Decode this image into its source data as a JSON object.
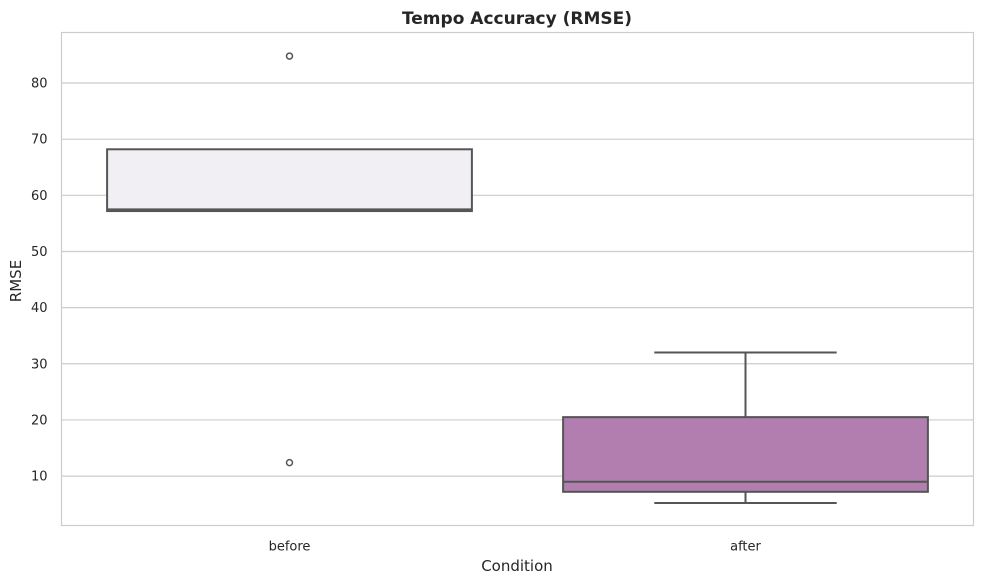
{
  "chart_data": {
    "type": "box",
    "title": "Tempo Accuracy (RMSE)",
    "xlabel": "Condition",
    "ylabel": "RMSE",
    "ylim": [
      1.2,
      89
    ],
    "yticks": [
      10,
      20,
      30,
      40,
      50,
      60,
      70,
      80
    ],
    "grid": "horizontal",
    "categories": [
      "before",
      "after"
    ],
    "boxes": [
      {
        "category": "before",
        "whisker_low": 57.2,
        "q1": 57.2,
        "median": 57.5,
        "q3": 68.2,
        "whisker_high": 68.2,
        "outliers": [
          84.8,
          12.4
        ],
        "color": "#f1eff3"
      },
      {
        "category": "after",
        "whisker_low": 5.2,
        "q1": 7.2,
        "median": 9.0,
        "q3": 20.5,
        "whisker_high": 32.0,
        "outliers": [],
        "color": "#b27eb0"
      }
    ],
    "colors": {
      "line": "#555555",
      "grid": "#cccccc",
      "frame": "#cccccc"
    }
  }
}
